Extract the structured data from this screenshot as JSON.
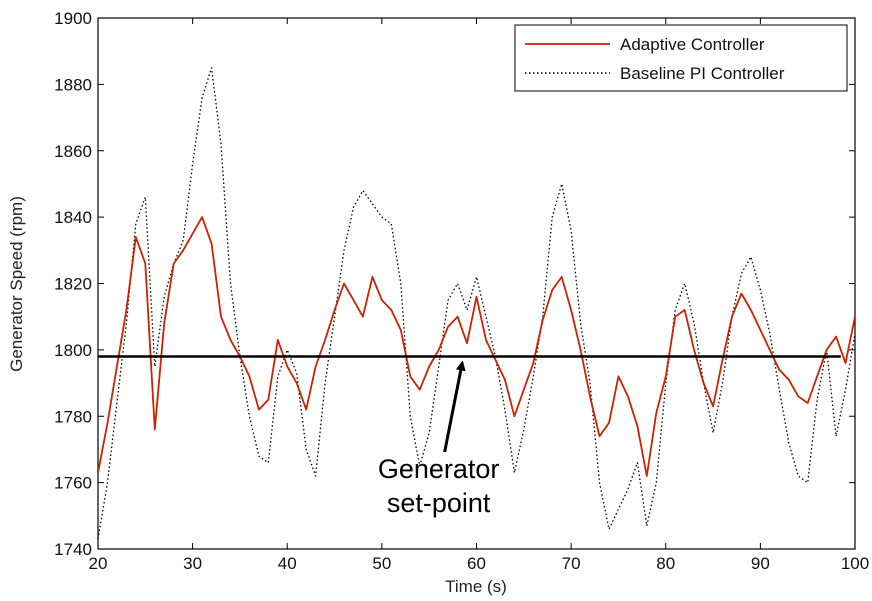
{
  "chart_data": {
    "type": "line",
    "title": "",
    "xlabel": "Time (s)",
    "ylabel": "Generator Speed (rpm)",
    "xlim": [
      20,
      100
    ],
    "ylim": [
      1740,
      1900
    ],
    "xticks": [
      20,
      30,
      40,
      50,
      60,
      70,
      80,
      90,
      100
    ],
    "yticks": [
      1740,
      1760,
      1780,
      1800,
      1820,
      1840,
      1860,
      1880,
      1900
    ],
    "grid": false,
    "legend_position": "top-right",
    "series": [
      {
        "name": "Adaptive Controller",
        "color": "#cc2200",
        "style": "solid",
        "x": [
          20,
          21,
          22,
          23,
          24,
          25,
          26,
          27,
          28,
          29,
          30,
          31,
          32,
          33,
          34,
          35,
          36,
          37,
          38,
          39,
          40,
          41,
          42,
          43,
          44,
          45,
          46,
          47,
          48,
          49,
          50,
          51,
          52,
          53,
          54,
          55,
          56,
          57,
          58,
          59,
          60,
          61,
          62,
          63,
          64,
          65,
          66,
          67,
          68,
          69,
          70,
          71,
          72,
          73,
          74,
          75,
          76,
          77,
          78,
          79,
          80,
          81,
          82,
          83,
          84,
          85,
          86,
          87,
          88,
          89,
          90,
          91,
          92,
          93,
          94,
          95,
          96,
          97,
          98,
          99,
          100
        ],
        "y": [
          1763,
          1778,
          1795,
          1812,
          1834,
          1826,
          1776,
          1808,
          1826,
          1830,
          1835,
          1840,
          1832,
          1810,
          1803,
          1798,
          1792,
          1782,
          1785,
          1803,
          1795,
          1790,
          1782,
          1795,
          1803,
          1812,
          1820,
          1815,
          1810,
          1822,
          1815,
          1812,
          1806,
          1792,
          1788,
          1795,
          1800,
          1807,
          1810,
          1802,
          1816,
          1803,
          1797,
          1791,
          1780,
          1788,
          1796,
          1809,
          1818,
          1822,
          1812,
          1800,
          1786,
          1774,
          1778,
          1792,
          1786,
          1777,
          1762,
          1781,
          1792,
          1810,
          1812,
          1800,
          1790,
          1783,
          1797,
          1810,
          1817,
          1812,
          1806,
          1800,
          1794,
          1791,
          1786,
          1784,
          1792,
          1800,
          1804,
          1796,
          1810
        ]
      },
      {
        "name": "Baseline PI Controller",
        "color": "#000000",
        "style": "dotted",
        "x": [
          20,
          21,
          22,
          23,
          24,
          25,
          26,
          27,
          28,
          29,
          30,
          31,
          32,
          33,
          34,
          35,
          36,
          37,
          38,
          39,
          40,
          41,
          42,
          43,
          44,
          45,
          46,
          47,
          48,
          49,
          50,
          51,
          52,
          53,
          54,
          55,
          56,
          57,
          58,
          59,
          60,
          61,
          62,
          63,
          64,
          65,
          66,
          67,
          68,
          69,
          70,
          71,
          72,
          73,
          74,
          75,
          76,
          77,
          78,
          79,
          80,
          81,
          82,
          83,
          84,
          85,
          86,
          87,
          88,
          89,
          90,
          91,
          92,
          93,
          94,
          95,
          96,
          97,
          98,
          99,
          100
        ],
        "y": [
          1743,
          1760,
          1784,
          1808,
          1838,
          1846,
          1795,
          1816,
          1826,
          1833,
          1856,
          1876,
          1885,
          1862,
          1820,
          1798,
          1780,
          1768,
          1766,
          1792,
          1800,
          1793,
          1770,
          1762,
          1790,
          1810,
          1830,
          1843,
          1848,
          1844,
          1840,
          1838,
          1820,
          1780,
          1765,
          1775,
          1795,
          1815,
          1820,
          1812,
          1822,
          1810,
          1798,
          1782,
          1763,
          1776,
          1792,
          1810,
          1840,
          1850,
          1836,
          1808,
          1790,
          1760,
          1746,
          1752,
          1758,
          1766,
          1747,
          1760,
          1790,
          1812,
          1820,
          1808,
          1790,
          1775,
          1790,
          1810,
          1823,
          1828,
          1818,
          1805,
          1788,
          1772,
          1762,
          1760,
          1785,
          1800,
          1774,
          1788,
          1805
        ]
      }
    ],
    "reference_line": {
      "y": 1798,
      "x_start": 20,
      "x_end": 98.5,
      "color": "#000000"
    },
    "annotation": {
      "line1": "Generator",
      "line2": "set-point",
      "target_x": 58.5,
      "target_y": 1798,
      "text_x": 56,
      "text_y": 1762
    }
  }
}
